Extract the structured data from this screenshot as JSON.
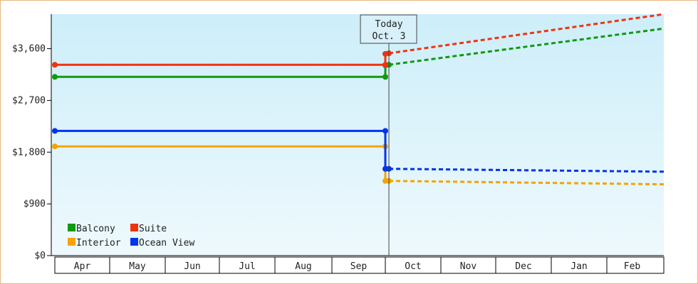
{
  "chart_data": {
    "type": "line",
    "y_ticks": [
      {
        "value": 0,
        "label": "$0"
      },
      {
        "value": 900,
        "label": "$900"
      },
      {
        "value": 1800,
        "label": "$1,800"
      },
      {
        "value": 2700,
        "label": "$2,700"
      },
      {
        "value": 3600,
        "label": "$3,600"
      }
    ],
    "ylim": [
      0,
      4200
    ],
    "months": [
      "Apr",
      "May",
      "Jun",
      "Jul",
      "Aug",
      "Sep",
      "Oct",
      "Nov",
      "Dec",
      "Jan",
      "Feb"
    ],
    "today_marker": {
      "line1": "Today",
      "line2": "Oct. 3"
    },
    "series": [
      {
        "name": "Balcony",
        "color": "#119911",
        "historical": [
          {
            "x": "Apr 1",
            "y": 3110
          },
          {
            "x": "Oct 1",
            "y": 3110
          }
        ],
        "forecast": [
          {
            "x": "Oct 1",
            "y": 3310
          },
          {
            "x": "Oct 3",
            "y": 3320
          },
          {
            "x": "Mar 1",
            "y": 3950
          }
        ]
      },
      {
        "name": "Suite",
        "color": "#ee3311",
        "historical": [
          {
            "x": "Apr 1",
            "y": 3320
          },
          {
            "x": "Oct 1",
            "y": 3320
          }
        ],
        "forecast": [
          {
            "x": "Oct 1",
            "y": 3510
          },
          {
            "x": "Oct 3",
            "y": 3520
          },
          {
            "x": "Mar 1",
            "y": 4200
          }
        ]
      },
      {
        "name": "Interior",
        "color": "#f5a300",
        "historical": [
          {
            "x": "Apr 1",
            "y": 1900
          },
          {
            "x": "Oct 1",
            "y": 1900
          }
        ],
        "forecast": [
          {
            "x": "Oct 1",
            "y": 1300
          },
          {
            "x": "Oct 3",
            "y": 1300
          },
          {
            "x": "Mar 1",
            "y": 1240
          }
        ]
      },
      {
        "name": "Ocean View",
        "color": "#0033ee",
        "historical": [
          {
            "x": "Apr 1",
            "y": 2170
          },
          {
            "x": "Oct 1",
            "y": 2170
          }
        ],
        "forecast": [
          {
            "x": "Oct 1",
            "y": 1510
          },
          {
            "x": "Oct 3",
            "y": 1510
          },
          {
            "x": "Mar 1",
            "y": 1460
          }
        ]
      }
    ],
    "legend": {
      "placement": "bottom-left",
      "order": [
        "Balcony",
        "Suite",
        "Interior",
        "Ocean View"
      ]
    },
    "grid": false
  }
}
